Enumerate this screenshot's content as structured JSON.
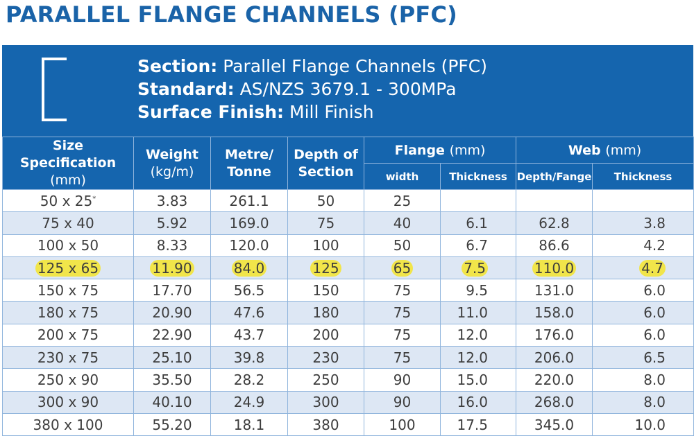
{
  "title": "PARALLEL FLANGE CHANNELS (PFC)",
  "info": {
    "section_label": "Section:",
    "section_value": "Parallel Flange Channels (PFC)",
    "standard_label": "Standard:",
    "standard_value": "AS/NZS 3679.1 - 300MPa",
    "finish_label": "Surface Finish:",
    "finish_value": "Mill Finish"
  },
  "headers": {
    "size_line1": "Size",
    "size_line2": "Specification",
    "size_unit": "(mm)",
    "weight_line1": "Weight",
    "weight_line2": "(kg/m)",
    "metre_line1": "Metre/",
    "metre_line2": "Tonne",
    "depth_line1": "Depth of",
    "depth_line2": "Section",
    "flange": "Flange",
    "flange_unit": "(mm)",
    "web": "Web",
    "web_unit": "(mm)",
    "flange_width": "width",
    "flange_thickness": "Thickness",
    "web_depth": "Depth/Fange",
    "web_thickness": "Thickness"
  },
  "highlight_color": "#f1e54a",
  "rows": [
    {
      "size": "50 x 25",
      "size_note": "*",
      "weight": "3.83",
      "metre": "261.1",
      "depth": "50",
      "fw": "25",
      "ft": "",
      "wd": "",
      "wt": ""
    },
    {
      "size": "75 x 40",
      "weight": "5.92",
      "metre": "169.0",
      "depth": "75",
      "fw": "40",
      "ft": "6.1",
      "wd": "62.8",
      "wt": "3.8"
    },
    {
      "size": "100 x 50",
      "weight": "8.33",
      "metre": "120.0",
      "depth": "100",
      "fw": "50",
      "ft": "6.7",
      "wd": "86.6",
      "wt": "4.2"
    },
    {
      "size": "125 x 65",
      "weight": "11.90",
      "metre": "84.0",
      "depth": "125",
      "fw": "65",
      "ft": "7.5",
      "wd": "110.0",
      "wt": "4.7",
      "highlighted": true
    },
    {
      "size": "150 x 75",
      "weight": "17.70",
      "metre": "56.5",
      "depth": "150",
      "fw": "75",
      "ft": "9.5",
      "wd": "131.0",
      "wt": "6.0"
    },
    {
      "size": "180 x 75",
      "weight": "20.90",
      "metre": "47.6",
      "depth": "180",
      "fw": "75",
      "ft": "11.0",
      "wd": "158.0",
      "wt": "6.0"
    },
    {
      "size": "200 x 75",
      "weight": "22.90",
      "metre": "43.7",
      "depth": "200",
      "fw": "75",
      "ft": "12.0",
      "wd": "176.0",
      "wt": "6.0"
    },
    {
      "size": "230 x 75",
      "weight": "25.10",
      "metre": "39.8",
      "depth": "230",
      "fw": "75",
      "ft": "12.0",
      "wd": "206.0",
      "wt": "6.5"
    },
    {
      "size": "250 x 90",
      "weight": "35.50",
      "metre": "28.2",
      "depth": "250",
      "fw": "90",
      "ft": "15.0",
      "wd": "220.0",
      "wt": "8.0"
    },
    {
      "size": "300 x 90",
      "weight": "40.10",
      "metre": "24.9",
      "depth": "300",
      "fw": "90",
      "ft": "16.0",
      "wd": "268.0",
      "wt": "8.0"
    },
    {
      "size": "380 x 100",
      "weight": "55.20",
      "metre": "18.1",
      "depth": "380",
      "fw": "100",
      "ft": "17.5",
      "wd": "345.0",
      "wt": "10.0"
    }
  ]
}
